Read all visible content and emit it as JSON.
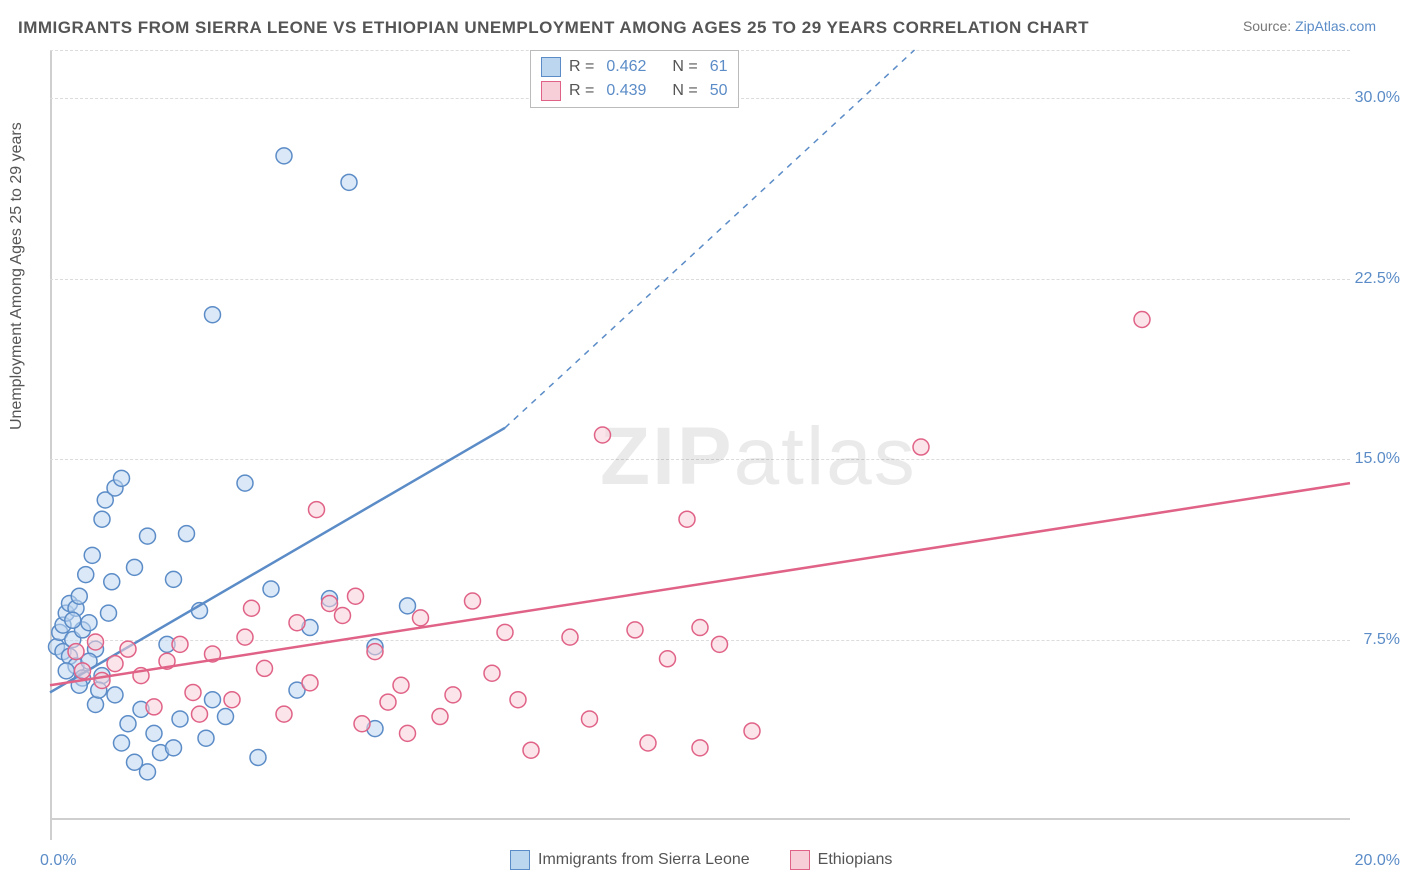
{
  "title": "IMMIGRANTS FROM SIERRA LEONE VS ETHIOPIAN UNEMPLOYMENT AMONG AGES 25 TO 29 YEARS CORRELATION CHART",
  "source_label": "Source:",
  "source_name": "ZipAtlas.com",
  "y_axis_label": "Unemployment Among Ages 25 to 29 years",
  "watermark_bold": "ZIP",
  "watermark_light": "atlas",
  "chart": {
    "type": "scatter",
    "xlim": [
      0,
      20
    ],
    "ylim": [
      0,
      32
    ],
    "x_tick_min": "0.0%",
    "x_tick_max": "20.0%",
    "y_ticks": [
      {
        "v": 7.5,
        "label": "7.5%"
      },
      {
        "v": 15.0,
        "label": "15.0%"
      },
      {
        "v": 22.5,
        "label": "22.5%"
      },
      {
        "v": 30.0,
        "label": "30.0%"
      }
    ],
    "grid_color": "#dcdcdc",
    "axis_color": "#cfcfcf",
    "background_color": "#ffffff",
    "marker_radius": 8,
    "marker_stroke_width": 1.5,
    "line_width": 2.5,
    "series": [
      {
        "name": "Immigrants from Sierra Leone",
        "fill": "#bdd6f0",
        "stroke": "#5b8cc7",
        "fill_opacity": 0.55,
        "R": "0.462",
        "N": "61",
        "trend": {
          "x1": 0,
          "y1": 5.3,
          "x2": 7.0,
          "y2": 16.3,
          "dash_x2": 13.3,
          "dash_y2": 32.0
        },
        "points": [
          [
            0.1,
            7.2
          ],
          [
            0.15,
            7.8
          ],
          [
            0.2,
            8.1
          ],
          [
            0.2,
            7.0
          ],
          [
            0.25,
            8.6
          ],
          [
            0.3,
            6.8
          ],
          [
            0.3,
            9.0
          ],
          [
            0.35,
            7.5
          ],
          [
            0.4,
            8.8
          ],
          [
            0.4,
            6.4
          ],
          [
            0.45,
            9.3
          ],
          [
            0.5,
            7.9
          ],
          [
            0.5,
            5.9
          ],
          [
            0.55,
            10.2
          ],
          [
            0.6,
            8.2
          ],
          [
            0.65,
            11.0
          ],
          [
            0.7,
            7.1
          ],
          [
            0.7,
            4.8
          ],
          [
            0.8,
            12.5
          ],
          [
            0.8,
            6.0
          ],
          [
            0.85,
            13.3
          ],
          [
            0.9,
            8.6
          ],
          [
            0.95,
            9.9
          ],
          [
            1.0,
            13.8
          ],
          [
            1.0,
            5.2
          ],
          [
            1.1,
            14.2
          ],
          [
            1.1,
            3.2
          ],
          [
            1.2,
            4.0
          ],
          [
            1.3,
            10.5
          ],
          [
            1.3,
            2.4
          ],
          [
            1.4,
            4.6
          ],
          [
            1.5,
            11.8
          ],
          [
            1.5,
            2.0
          ],
          [
            1.6,
            3.6
          ],
          [
            1.7,
            2.8
          ],
          [
            1.8,
            7.3
          ],
          [
            1.9,
            10.0
          ],
          [
            1.9,
            3.0
          ],
          [
            2.0,
            4.2
          ],
          [
            2.1,
            11.9
          ],
          [
            2.3,
            8.7
          ],
          [
            2.4,
            3.4
          ],
          [
            2.5,
            5.0
          ],
          [
            2.5,
            21.0
          ],
          [
            2.7,
            4.3
          ],
          [
            3.0,
            14.0
          ],
          [
            3.2,
            2.6
          ],
          [
            3.4,
            9.6
          ],
          [
            3.6,
            27.6
          ],
          [
            3.8,
            5.4
          ],
          [
            4.0,
            8.0
          ],
          [
            4.3,
            9.2
          ],
          [
            4.6,
            26.5
          ],
          [
            5.0,
            7.2
          ],
          [
            5.0,
            3.8
          ],
          [
            5.5,
            8.9
          ],
          [
            0.25,
            6.2
          ],
          [
            0.45,
            5.6
          ],
          [
            0.6,
            6.6
          ],
          [
            0.75,
            5.4
          ],
          [
            0.35,
            8.3
          ]
        ]
      },
      {
        "name": "Ethiopians",
        "fill": "#f7cfd9",
        "stroke": "#e06287",
        "fill_opacity": 0.55,
        "R": "0.439",
        "N": "50",
        "trend": {
          "x1": 0,
          "y1": 5.6,
          "x2": 20.0,
          "y2": 14.0
        },
        "points": [
          [
            0.4,
            7.0
          ],
          [
            0.5,
            6.2
          ],
          [
            0.7,
            7.4
          ],
          [
            0.8,
            5.8
          ],
          [
            1.0,
            6.5
          ],
          [
            1.2,
            7.1
          ],
          [
            1.4,
            6.0
          ],
          [
            1.6,
            4.7
          ],
          [
            1.8,
            6.6
          ],
          [
            2.0,
            7.3
          ],
          [
            2.2,
            5.3
          ],
          [
            2.5,
            6.9
          ],
          [
            2.8,
            5.0
          ],
          [
            3.0,
            7.6
          ],
          [
            3.3,
            6.3
          ],
          [
            3.6,
            4.4
          ],
          [
            3.8,
            8.2
          ],
          [
            4.0,
            5.7
          ],
          [
            4.1,
            12.9
          ],
          [
            4.3,
            9.0
          ],
          [
            4.5,
            8.5
          ],
          [
            4.8,
            4.0
          ],
          [
            5.0,
            7.0
          ],
          [
            5.2,
            4.9
          ],
          [
            5.4,
            5.6
          ],
          [
            5.5,
            3.6
          ],
          [
            5.7,
            8.4
          ],
          [
            6.0,
            4.3
          ],
          [
            6.2,
            5.2
          ],
          [
            6.5,
            9.1
          ],
          [
            6.8,
            6.1
          ],
          [
            7.0,
            7.8
          ],
          [
            7.2,
            5.0
          ],
          [
            7.4,
            2.9
          ],
          [
            8.0,
            7.6
          ],
          [
            8.3,
            4.2
          ],
          [
            8.5,
            16.0
          ],
          [
            9.0,
            7.9
          ],
          [
            9.2,
            3.2
          ],
          [
            9.5,
            6.7
          ],
          [
            9.8,
            12.5
          ],
          [
            10.0,
            8.0
          ],
          [
            10.0,
            3.0
          ],
          [
            10.3,
            7.3
          ],
          [
            10.8,
            3.7
          ],
          [
            13.4,
            15.5
          ],
          [
            16.8,
            20.8
          ],
          [
            4.7,
            9.3
          ],
          [
            3.1,
            8.8
          ],
          [
            2.3,
            4.4
          ]
        ]
      }
    ],
    "legend_bottom": [
      {
        "swatch": "sw-blue",
        "label": "Immigrants from Sierra Leone"
      },
      {
        "swatch": "sw-pink",
        "label": "Ethiopians"
      }
    ]
  }
}
